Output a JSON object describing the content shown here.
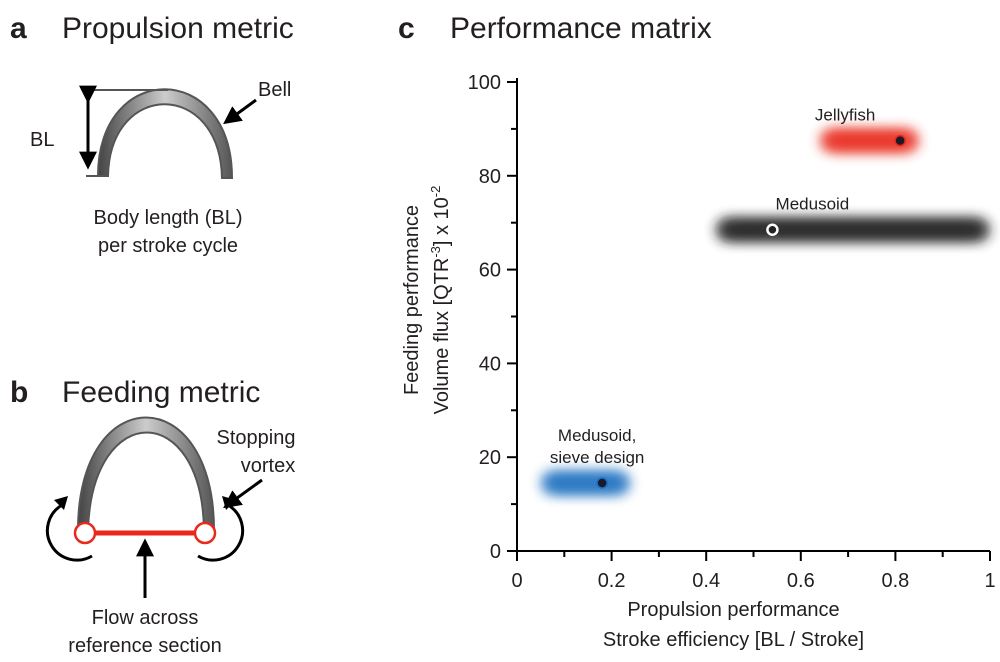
{
  "panel_a": {
    "letter": "a",
    "title": "Propulsion metric",
    "bl_label": "BL",
    "bell_label": "Bell",
    "caption": [
      "Body length (BL)",
      "per stroke cycle"
    ]
  },
  "panel_b": {
    "letter": "b",
    "title": "Feeding metric",
    "vortex_label": [
      "Stopping",
      "vortex"
    ],
    "caption": [
      "Flow across",
      "reference section"
    ]
  },
  "chart_data": {
    "type": "range-scatter",
    "letter": "c",
    "title": "Performance matrix",
    "x_label": [
      "Propulsion performance",
      "Stroke efficiency  [BL / Stroke]"
    ],
    "y_label": {
      "line1": "Feeding performance",
      "line2_parts": [
        "Volume flux [QTR",
        "-3",
        "] x 10",
        "-2"
      ]
    },
    "xlim": [
      0,
      1
    ],
    "xticks": [
      0,
      0.2,
      0.4,
      0.6,
      0.8,
      1
    ],
    "x_minor_ticks": [
      0.1,
      0.3,
      0.5,
      0.7,
      0.9
    ],
    "ylim": [
      0,
      100
    ],
    "yticks": [
      0,
      20,
      40,
      60,
      80,
      100
    ],
    "y_minor_ticks": [
      10,
      30,
      50,
      70,
      90
    ],
    "series": [
      {
        "label": [
          "Jellyfish"
        ],
        "color": "#e8291c",
        "label_color": "#c4202f",
        "marker": "dot",
        "x": 0.81,
        "y": 87.5,
        "xmin": 0.64,
        "xmax": 0.85
      },
      {
        "label": [
          "Medusoid"
        ],
        "color": "#1e1e1e",
        "label_color": "#111111",
        "marker": "ring",
        "x": 0.54,
        "y": 68.5,
        "xmin": 0.42,
        "xmax": 1.0
      },
      {
        "label": [
          "Medusoid,",
          "sieve design"
        ],
        "color": "#1a6fc0",
        "label_color": "#1a5d96",
        "marker": "dot",
        "x": 0.18,
        "y": 14.5,
        "xmin": 0.05,
        "xmax": 0.24
      }
    ]
  }
}
